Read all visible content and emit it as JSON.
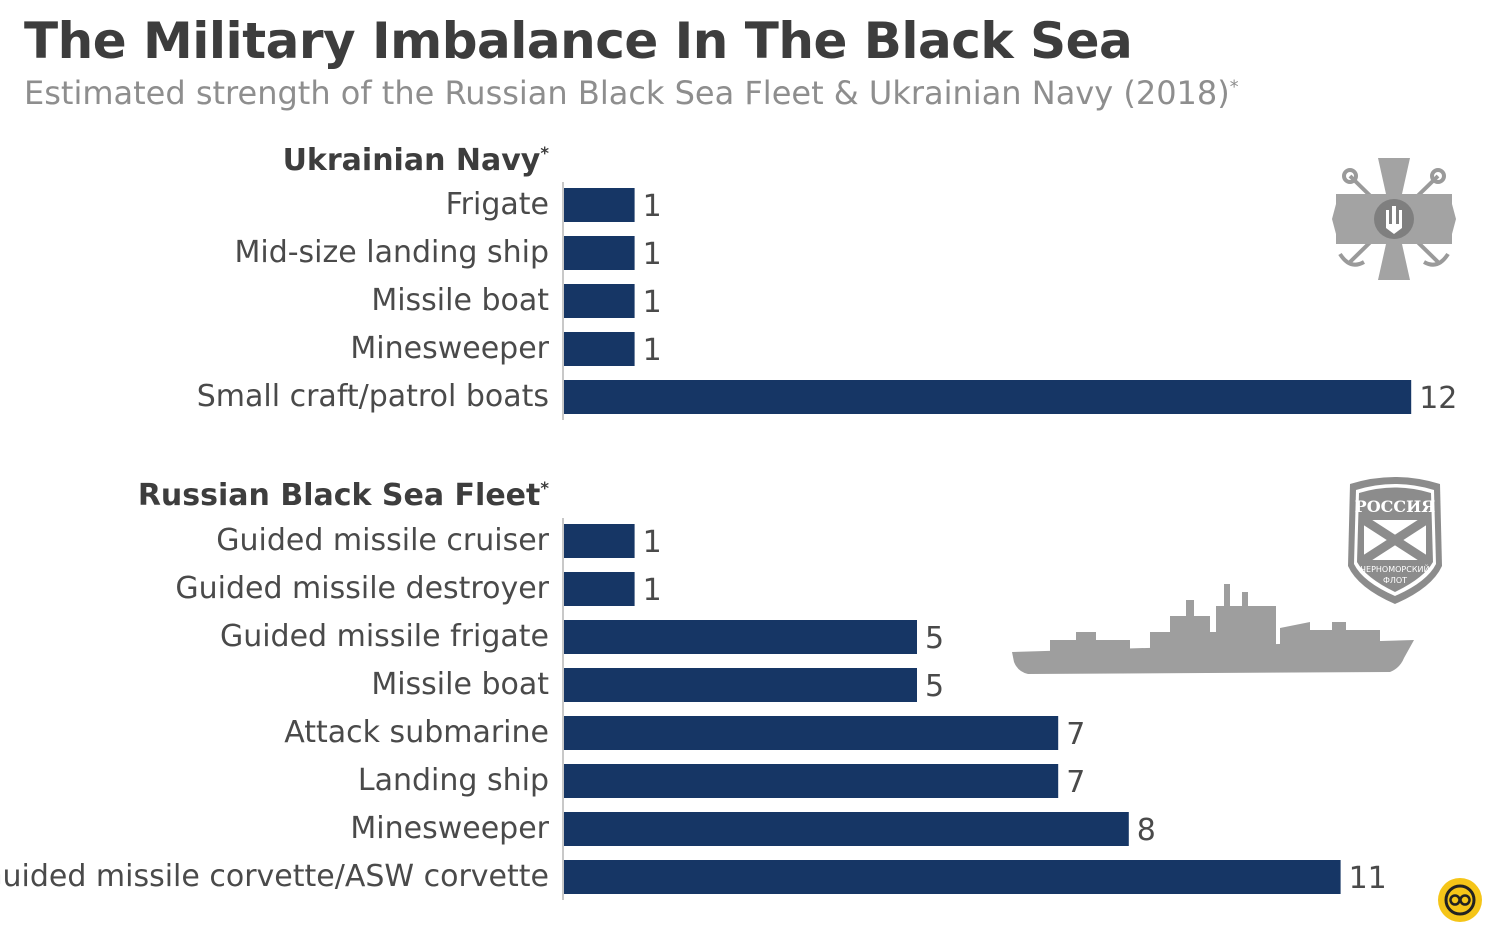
{
  "title": "The Military Imbalance In The Black Sea",
  "subtitle": "Estimated strength of the Russian Black Sea Fleet & Ukrainian Navy (2018)",
  "subtitle_mark": "*",
  "colors": {
    "bar": "#163665",
    "label": "#4a4a4a",
    "value": "#4a4a4a",
    "axis": "#c8c8c8",
    "emblem": "#9a9a9a",
    "logo_bg": "#f5c518"
  },
  "icons": [
    "ukrainian-navy-emblem-icon",
    "russian-black-sea-fleet-emblem-icon",
    "warship-silhouette-icon",
    "statista-logo-icon"
  ],
  "emblem_ru_text": {
    "top": "РОССИЯ",
    "bottom1": "ЧЕРНОМОРСКИЙ",
    "bottom2": "ФЛОТ"
  },
  "chart_data": [
    {
      "type": "bar",
      "orientation": "horizontal",
      "title": "Ukrainian Navy",
      "title_mark": "*",
      "categories": [
        "Frigate",
        "Mid-size landing ship",
        "Missile boat",
        "Minesweeper",
        "Small craft/patrol boats"
      ],
      "values": [
        1,
        1,
        1,
        1,
        12
      ],
      "xlim": [
        0,
        12
      ]
    },
    {
      "type": "bar",
      "orientation": "horizontal",
      "title": "Russian Black Sea Fleet",
      "title_mark": "*",
      "categories": [
        "Guided missile cruiser",
        "Guided missile destroyer",
        "Guided missile frigate",
        "Missile boat",
        "Attack submarine",
        "Landing ship",
        "Minesweeper",
        "Guided missile corvette/ASW corvette"
      ],
      "values": [
        1,
        1,
        5,
        5,
        7,
        7,
        8,
        11
      ],
      "xlim": [
        0,
        12
      ]
    }
  ]
}
